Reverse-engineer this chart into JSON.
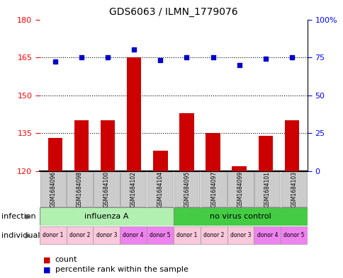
{
  "title": "GDS6063 / ILMN_1779076",
  "samples": [
    "GSM1684096",
    "GSM1684098",
    "GSM1684100",
    "GSM1684102",
    "GSM1684104",
    "GSM1684095",
    "GSM1684097",
    "GSM1684099",
    "GSM1684101",
    "GSM1684103"
  ],
  "counts": [
    133,
    140,
    140,
    165,
    128,
    143,
    135,
    122,
    134,
    140
  ],
  "percentiles": [
    72,
    75,
    75,
    80,
    73,
    75,
    75,
    70,
    74,
    75
  ],
  "infection_groups": [
    {
      "label": "influenza A",
      "start": 0,
      "end": 5,
      "color": "#b2f0b2"
    },
    {
      "label": "no virus control",
      "start": 5,
      "end": 10,
      "color": "#44cc44"
    }
  ],
  "donors": [
    "donor 1",
    "donor 2",
    "donor 3",
    "donor 4",
    "donor 5",
    "donor 1",
    "donor 2",
    "donor 3",
    "donor 4",
    "donor 5"
  ],
  "donor_colors": [
    "#f9c8da",
    "#f9c8da",
    "#f9c8da",
    "#ee82ee",
    "#ee82ee",
    "#f9c8da",
    "#f9c8da",
    "#f9c8da",
    "#ee82ee",
    "#ee82ee"
  ],
  "ylim_left": [
    120,
    180
  ],
  "yticks_left": [
    120,
    135,
    150,
    165,
    180
  ],
  "ylim_right": [
    0,
    100
  ],
  "yticks_right": [
    0,
    25,
    50,
    75,
    100
  ],
  "bar_color": "#CC0000",
  "dot_color": "#0000CC",
  "bar_width": 0.55,
  "legend_count_label": "count",
  "legend_pct_label": "percentile rank within the sample",
  "infection_label": "infection",
  "individual_label": "individual",
  "sample_box_color": "#cccccc",
  "arrow_color": "#555555"
}
